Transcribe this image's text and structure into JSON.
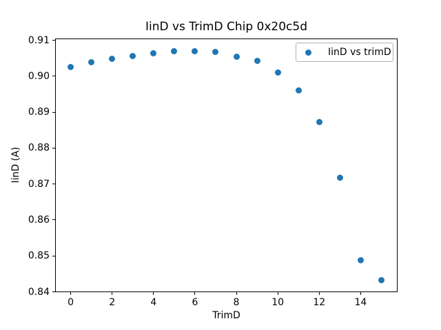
{
  "figure": {
    "background": "#ffffff",
    "title": "IinD vs TrimD Chip 0x20c5d"
  },
  "chart_data": {
    "type": "scatter",
    "title": "IinD vs TrimD Chip 0x20c5d",
    "xlabel": "TrimD",
    "ylabel": "IinD (A)",
    "x": [
      0,
      1,
      2,
      3,
      4,
      5,
      6,
      7,
      8,
      9,
      10,
      11,
      12,
      13,
      14,
      15
    ],
    "series": [
      {
        "name": "IinD vs trimD",
        "values": [
          0.9026,
          0.9039,
          0.9049,
          0.9057,
          0.9063,
          0.907,
          0.9069,
          0.9067,
          0.9055,
          0.9043,
          0.9011,
          0.8961,
          0.8873,
          0.8718,
          0.8488,
          0.8432
        ]
      }
    ],
    "xlim": [
      -0.75,
      15.75
    ],
    "ylim": [
      0.84,
      0.9105
    ],
    "xticks": [
      0,
      2,
      4,
      6,
      8,
      10,
      12,
      14
    ],
    "xtick_labels": [
      "0",
      "2",
      "4",
      "6",
      "8",
      "10",
      "12",
      "14"
    ],
    "yticks": [
      0.84,
      0.85,
      0.86,
      0.87,
      0.88,
      0.89,
      0.9,
      0.91
    ],
    "ytick_labels": [
      "0.84",
      "0.85",
      "0.86",
      "0.87",
      "0.88",
      "0.89",
      "0.90",
      "0.91"
    ],
    "grid": false,
    "marker_color": "#1f77b4",
    "legend": {
      "position": "upper right",
      "label": "IinD vs trimD"
    }
  }
}
